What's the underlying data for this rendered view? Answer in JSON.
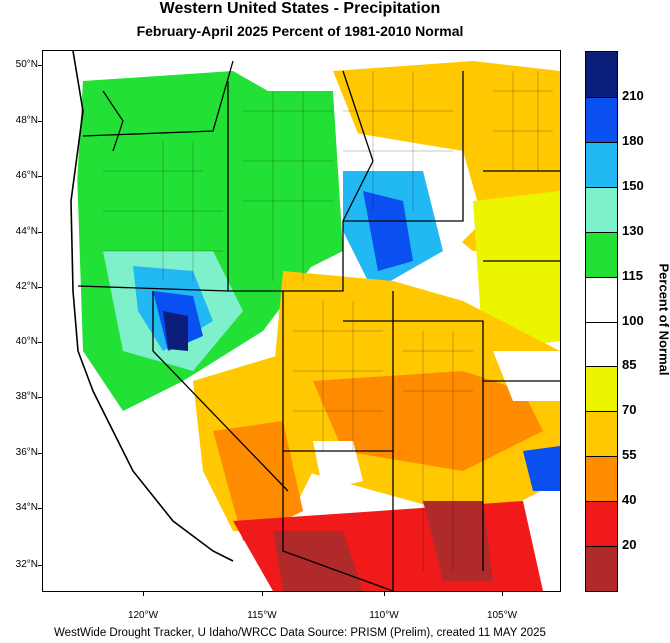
{
  "title": "Western United States - Precipitation",
  "subtitle": "February-April 2025  Percent of 1981-2010 Normal",
  "colorbar": {
    "title": "Percent of Normal",
    "bins": [
      {
        "color": "#b02a2a",
        "label": "20"
      },
      {
        "color": "#f01a1a",
        "label": "40"
      },
      {
        "color": "#ff8c00",
        "label": "55"
      },
      {
        "color": "#ffc800",
        "label": "70"
      },
      {
        "color": "#ecf500",
        "label": "85"
      },
      {
        "color": "#ffffff",
        "label": "100"
      },
      {
        "color": "#ffffff",
        "label": "115"
      },
      {
        "color": "#22e036",
        "label": "130"
      },
      {
        "color": "#7ff0cc",
        "label": "150"
      },
      {
        "color": "#22b8f4",
        "label": "180"
      },
      {
        "color": "#0a4ff0",
        "label": "210"
      },
      {
        "color": "#0b1e7a",
        "label": ""
      }
    ]
  },
  "latitude_labels": [
    "50°N",
    "48°N",
    "46°N",
    "44°N",
    "42°N",
    "40°N",
    "38°N",
    "36°N",
    "34°N",
    "32°N"
  ],
  "longitude_labels": [
    "120°W",
    "115°W",
    "110°W",
    "105°W"
  ],
  "footer": "WestWide Drought Tracker, U Idaho/WRCC Data Source: PRISM (Prelim), created 11 MAY 2025"
}
